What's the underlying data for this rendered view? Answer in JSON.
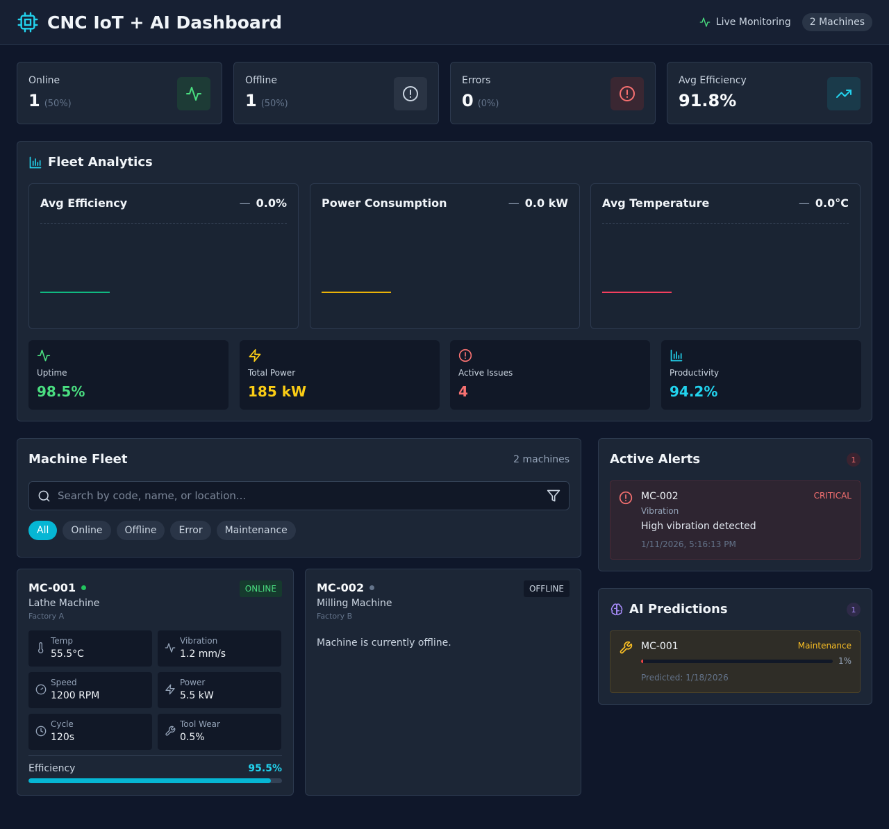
{
  "header": {
    "title": "CNC IoT + AI Dashboard",
    "live_label": "Live Monitoring",
    "machines_pill": "2 Machines"
  },
  "stats": [
    {
      "label": "Online",
      "value": "1",
      "sub": "(50%)",
      "icon": "activity-icon",
      "color": "#4ade80"
    },
    {
      "label": "Offline",
      "value": "1",
      "sub": "(50%)",
      "icon": "alert-circle-icon",
      "color": "#cbd5e1"
    },
    {
      "label": "Errors",
      "value": "0",
      "sub": "(0%)",
      "icon": "error-circle-icon",
      "color": "#f87171"
    },
    {
      "label": "Avg Efficiency",
      "value": "91.8%",
      "sub": "",
      "icon": "trending-up-icon",
      "color": "#22d3ee"
    }
  ],
  "analytics": {
    "title": "Fleet Analytics",
    "charts": [
      {
        "title": "Avg Efficiency",
        "dash": "—",
        "value": "0.0%",
        "color": "#10b981"
      },
      {
        "title": "Power Consumption",
        "dash": "—",
        "value": "0.0 kW",
        "color": "#eab308"
      },
      {
        "title": "Avg Temperature",
        "dash": "—",
        "value": "0.0°C",
        "color": "#f43f5e"
      }
    ],
    "kpis": [
      {
        "label": "Uptime",
        "value": "98.5%",
        "icon": "activity-icon",
        "color": "#4ade80"
      },
      {
        "label": "Total Power",
        "value": "185 kW",
        "icon": "zap-icon",
        "color": "#facc15"
      },
      {
        "label": "Active Issues",
        "value": "4",
        "icon": "alert-circle-icon",
        "color": "#f87171"
      },
      {
        "label": "Productivity",
        "value": "94.2%",
        "icon": "bar-chart-icon",
        "color": "#22d3ee"
      }
    ]
  },
  "fleet": {
    "title": "Machine Fleet",
    "count": "2 machines",
    "search_placeholder": "Search by code, name, or location...",
    "filters": [
      "All",
      "Online",
      "Offline",
      "Error",
      "Maintenance"
    ],
    "active_filter": "All"
  },
  "machines": [
    {
      "code": "MC-001",
      "name": "Lathe Machine",
      "location": "Factory A",
      "status": "ONLINE",
      "metrics": [
        {
          "label": "Temp",
          "value": "55.5°C",
          "icon": "thermometer-icon"
        },
        {
          "label": "Vibration",
          "value": "1.2 mm/s",
          "icon": "activity-icon"
        },
        {
          "label": "Speed",
          "value": "1200 RPM",
          "icon": "gauge-icon"
        },
        {
          "label": "Power",
          "value": "5.5 kW",
          "icon": "zap-icon"
        },
        {
          "label": "Cycle",
          "value": "120s",
          "icon": "clock-icon"
        },
        {
          "label": "Tool Wear",
          "value": "0.5%",
          "icon": "wrench-icon"
        }
      ],
      "efficiency_label": "Efficiency",
      "efficiency": "95.5%",
      "efficiency_fraction": 0.955
    },
    {
      "code": "MC-002",
      "name": "Milling Machine",
      "location": "Factory B",
      "status": "OFFLINE",
      "offline_message": "Machine is currently offline."
    }
  ],
  "alerts": {
    "title": "Active Alerts",
    "count": "1",
    "items": [
      {
        "code": "MC-002",
        "severity": "CRITICAL",
        "type": "Vibration",
        "message": "High vibration detected",
        "time": "1/11/2026, 5:16:13 PM"
      }
    ]
  },
  "predictions": {
    "title": "AI Predictions",
    "count": "1",
    "items": [
      {
        "code": "MC-001",
        "kind": "Maintenance",
        "probability": "1%",
        "probability_fraction": 0.01,
        "predicted": "Predicted: 1/18/2026"
      }
    ]
  },
  "colors": {
    "accent": "#06b6d4",
    "online": "#4ade80",
    "critical": "#f87171",
    "maintenance": "#fbbf24",
    "ai": "#a78bfa"
  }
}
